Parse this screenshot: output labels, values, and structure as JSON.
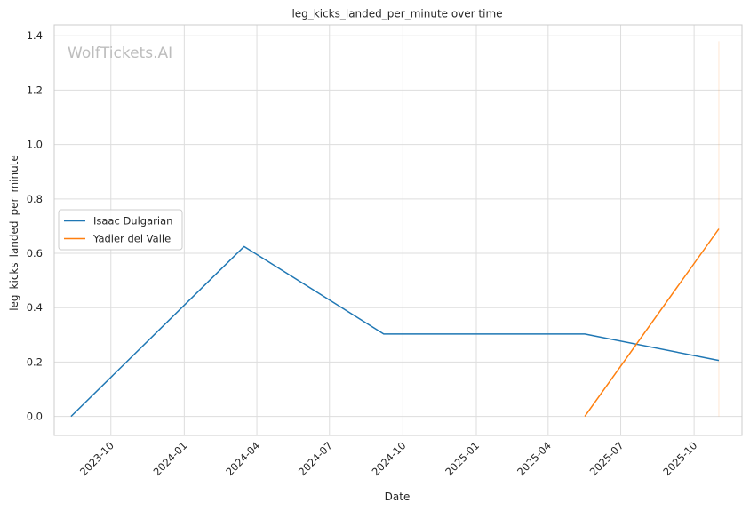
{
  "watermark": "WolfTickets.AI",
  "colors": {
    "isaac": "#1f77b4",
    "yadier": "#ff7f0e",
    "grid": "#dddddd",
    "frame": "#cccccc"
  },
  "chart_data": {
    "type": "line",
    "title": "leg_kicks_landed_per_minute over time",
    "xlabel": "Date",
    "ylabel": "leg_kicks_landed_per_minute",
    "x_ticks": [
      "2023-10",
      "2024-01",
      "2024-04",
      "2024-07",
      "2024-10",
      "2025-01",
      "2025-04",
      "2025-07",
      "2025-10"
    ],
    "y_ticks": [
      "0.0",
      "0.2",
      "0.4",
      "0.6",
      "0.8",
      "1.0",
      "1.2",
      "1.4"
    ],
    "xlim": [
      "2023-07-22",
      "2025-11-30"
    ],
    "ylim": [
      -0.07,
      1.44
    ],
    "grid": true,
    "legend_position": "center-left",
    "series": [
      {
        "name": "Isaac Dulgarian",
        "color": "#1f77b4",
        "points": [
          {
            "x": "2023-08-12",
            "y": 0.0
          },
          {
            "x": "2024-03-16",
            "y": 0.625
          },
          {
            "x": "2024-09-07",
            "y": 0.303
          },
          {
            "x": "2025-05-17",
            "y": 0.303
          },
          {
            "x": "2025-11-01",
            "y": 0.206
          }
        ]
      },
      {
        "name": "Yadier del Valle",
        "color": "#ff7f0e",
        "points": [
          {
            "x": "2025-05-17",
            "y": 0.0
          },
          {
            "x": "2025-11-01",
            "y": 0.69
          }
        ]
      }
    ]
  }
}
